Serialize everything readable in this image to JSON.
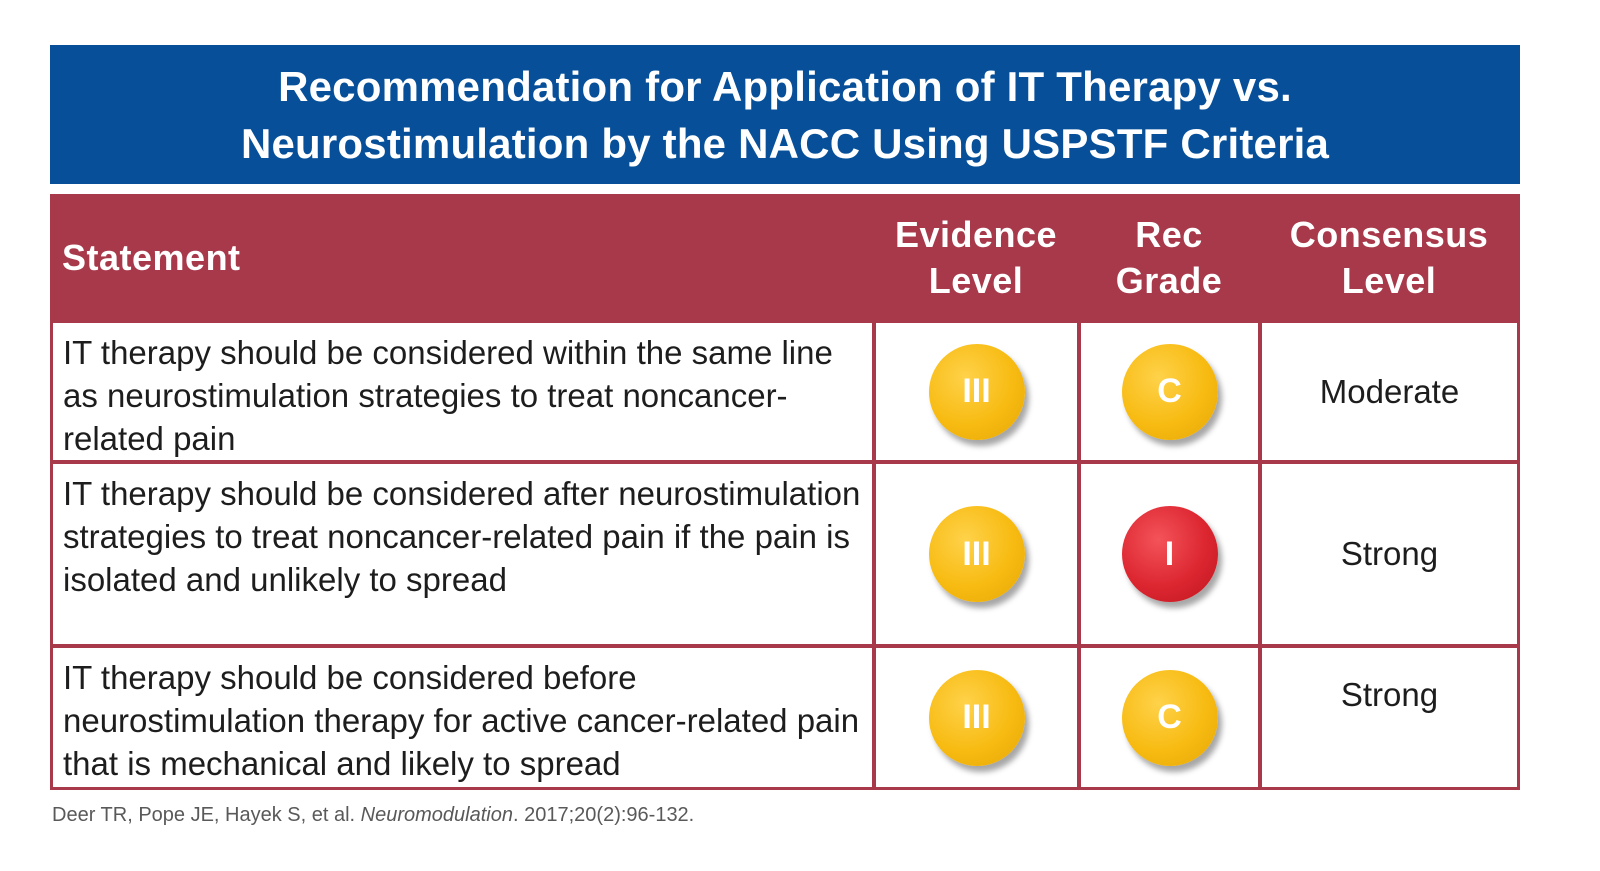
{
  "title": {
    "line1": "Recommendation for Application of IT Therapy vs.",
    "line2": "Neurostimulation by the NACC Using USPSTF Criteria"
  },
  "table": {
    "headers": {
      "statement": "Statement",
      "evidence_line1": "Evidence",
      "evidence_line2": "Level",
      "grade_line1": "Rec",
      "grade_line2": "Grade",
      "consensus_line1": "Consensus",
      "consensus_line2": "Level"
    },
    "rows": [
      {
        "statement": "IT therapy should be considered within the same line as neurostimulation strategies to treat noncancer-related pain",
        "evidence": "III",
        "grade": "C",
        "consensus": "Moderate"
      },
      {
        "statement": "IT therapy should be considered after neurostimulation strategies to treat noncancer-related pain if the pain is isolated and unlikely to spread",
        "evidence": "III",
        "grade": "I",
        "consensus": "Strong"
      },
      {
        "statement": "IT therapy should be considered before neurostimulation therapy for active cancer-related pain that is mechanical and likely to spread",
        "evidence": "III",
        "grade": "C",
        "consensus": "Strong"
      }
    ]
  },
  "citation": {
    "authors": "Deer TR, Pope JE, Hayek S, et al.",
    "journal": "Neuromodulation",
    "details": ". 2017;20(2):96-132."
  },
  "colors": {
    "banner": "#075099",
    "table_header": "#a8394b",
    "badge_gold": "#f7bb12",
    "badge_red": "#dc2630"
  }
}
